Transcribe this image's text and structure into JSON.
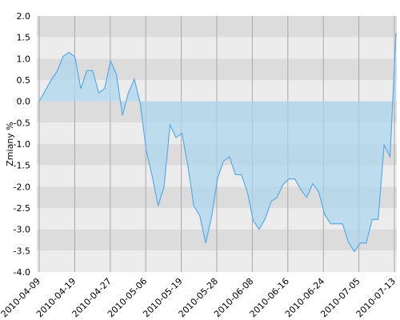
{
  "chart_data": {
    "type": "area",
    "title": "",
    "xlabel": "",
    "ylabel": "Zmiany %",
    "ylim": [
      -4.0,
      2.0
    ],
    "y_ticks": [
      "2.0",
      "1.5",
      "1.0",
      "0.5",
      "0.0",
      "-0.5",
      "-1.0",
      "-1.5",
      "-2.0",
      "-2.5",
      "-3.0",
      "-3.5",
      "-4.0"
    ],
    "x_ticks": [
      "2010-04-09",
      "2010-04-19",
      "2010-04-27",
      "2010-05-06",
      "2010-05-19",
      "2010-05-28",
      "2010-06-08",
      "2010-06-16",
      "2010-06-24",
      "2010-07-05",
      "2010-07-13"
    ],
    "grid": true,
    "colors": {
      "band_dark": "#dcdcdc",
      "band_light": "#ececec",
      "line": "#5aaae6",
      "fill": "#a9d6ef",
      "vgrid": "#a8a8a8"
    },
    "series": [
      {
        "values": [
          0.0,
          0.25,
          0.5,
          0.7,
          1.05,
          1.15,
          1.05,
          0.3,
          0.72,
          0.72,
          0.2,
          0.3,
          0.95,
          0.62,
          -0.33,
          0.2,
          0.52,
          -0.05,
          -1.15,
          -1.75,
          -2.45,
          -2.0,
          -0.55,
          -0.85,
          -0.75,
          -1.5,
          -2.45,
          -2.68,
          -3.32,
          -2.7,
          -1.8,
          -1.4,
          -1.3,
          -1.72,
          -1.72,
          -2.12,
          -2.8,
          -3.0,
          -2.75,
          -2.35,
          -2.25,
          -1.95,
          -1.82,
          -1.82,
          -2.07,
          -2.25,
          -1.93,
          -2.12,
          -2.65,
          -2.87,
          -2.87,
          -2.87,
          -3.3,
          -3.52,
          -3.32,
          -3.32,
          -2.77,
          -2.77,
          -1.02,
          -1.3,
          1.6
        ]
      }
    ]
  }
}
